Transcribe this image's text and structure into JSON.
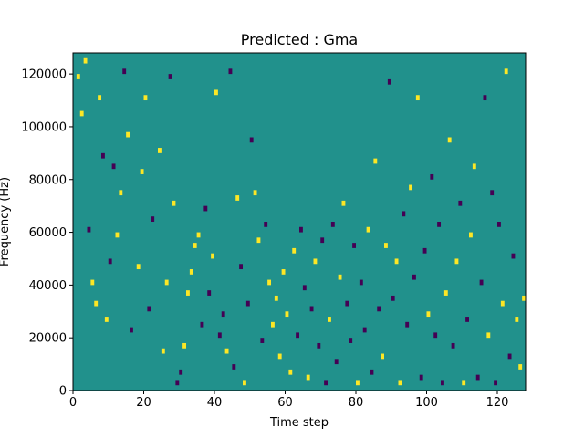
{
  "chart_data": {
    "type": "heatmap",
    "title": "Predicted : Gma",
    "xlabel": "Time step",
    "ylabel": "Frequency (Hz)",
    "xlim": [
      0,
      128
    ],
    "ylim": [
      0,
      128000
    ],
    "x_ticks": [
      0,
      20,
      40,
      60,
      80,
      100,
      120
    ],
    "y_ticks": [
      0,
      20000,
      40000,
      60000,
      80000,
      100000,
      120000
    ],
    "x_tick_labels": [
      "0",
      "20",
      "40",
      "60",
      "80",
      "100",
      "120"
    ],
    "y_tick_labels": [
      "0",
      "20000",
      "40000",
      "60000",
      "80000",
      "100000",
      "120000"
    ],
    "n_time_steps": 128,
    "n_frequency_bins": 64,
    "bin_height_hz": 2000,
    "value_range": [
      -1,
      1
    ],
    "colormap": {
      "-1": "#440154",
      "0": "#21918c",
      "1": "#fde725"
    },
    "background_value": 0,
    "grid": false,
    "cells": [
      {
        "t": 1,
        "f": 118000,
        "v": 1
      },
      {
        "t": 2,
        "f": 104000,
        "v": 1
      },
      {
        "t": 3,
        "f": 124000,
        "v": 1
      },
      {
        "t": 4,
        "f": 60000,
        "v": -1
      },
      {
        "t": 5,
        "f": 40000,
        "v": 1
      },
      {
        "t": 6,
        "f": 32000,
        "v": 1
      },
      {
        "t": 7,
        "f": 110000,
        "v": 1
      },
      {
        "t": 8,
        "f": 88000,
        "v": -1
      },
      {
        "t": 9,
        "f": 26000,
        "v": 1
      },
      {
        "t": 10,
        "f": 48000,
        "v": -1
      },
      {
        "t": 11,
        "f": 84000,
        "v": -1
      },
      {
        "t": 12,
        "f": 58000,
        "v": 1
      },
      {
        "t": 13,
        "f": 74000,
        "v": 1
      },
      {
        "t": 14,
        "f": 120000,
        "v": -1
      },
      {
        "t": 15,
        "f": 96000,
        "v": 1
      },
      {
        "t": 16,
        "f": 22000,
        "v": -1
      },
      {
        "t": 18,
        "f": 46000,
        "v": 1
      },
      {
        "t": 19,
        "f": 82000,
        "v": 1
      },
      {
        "t": 20,
        "f": 110000,
        "v": 1
      },
      {
        "t": 21,
        "f": 30000,
        "v": -1
      },
      {
        "t": 22,
        "f": 64000,
        "v": -1
      },
      {
        "t": 24,
        "f": 90000,
        "v": 1
      },
      {
        "t": 25,
        "f": 14000,
        "v": 1
      },
      {
        "t": 26,
        "f": 40000,
        "v": 1
      },
      {
        "t": 27,
        "f": 118000,
        "v": -1
      },
      {
        "t": 28,
        "f": 70000,
        "v": 1
      },
      {
        "t": 29,
        "f": 2000,
        "v": -1
      },
      {
        "t": 30,
        "f": 6000,
        "v": -1
      },
      {
        "t": 31,
        "f": 16000,
        "v": 1
      },
      {
        "t": 32,
        "f": 36000,
        "v": 1
      },
      {
        "t": 33,
        "f": 44000,
        "v": 1
      },
      {
        "t": 34,
        "f": 54000,
        "v": 1
      },
      {
        "t": 35,
        "f": 58000,
        "v": 1
      },
      {
        "t": 36,
        "f": 24000,
        "v": -1
      },
      {
        "t": 37,
        "f": 68000,
        "v": -1
      },
      {
        "t": 38,
        "f": 36000,
        "v": -1
      },
      {
        "t": 39,
        "f": 50000,
        "v": 1
      },
      {
        "t": 40,
        "f": 112000,
        "v": 1
      },
      {
        "t": 41,
        "f": 20000,
        "v": -1
      },
      {
        "t": 42,
        "f": 28000,
        "v": -1
      },
      {
        "t": 43,
        "f": 14000,
        "v": 1
      },
      {
        "t": 44,
        "f": 120000,
        "v": -1
      },
      {
        "t": 45,
        "f": 8000,
        "v": -1
      },
      {
        "t": 46,
        "f": 72000,
        "v": 1
      },
      {
        "t": 47,
        "f": 46000,
        "v": -1
      },
      {
        "t": 48,
        "f": 2000,
        "v": 1
      },
      {
        "t": 49,
        "f": 32000,
        "v": -1
      },
      {
        "t": 50,
        "f": 94000,
        "v": -1
      },
      {
        "t": 51,
        "f": 74000,
        "v": 1
      },
      {
        "t": 52,
        "f": 56000,
        "v": 1
      },
      {
        "t": 53,
        "f": 18000,
        "v": -1
      },
      {
        "t": 54,
        "f": 62000,
        "v": -1
      },
      {
        "t": 55,
        "f": 40000,
        "v": 1
      },
      {
        "t": 56,
        "f": 24000,
        "v": 1
      },
      {
        "t": 57,
        "f": 34000,
        "v": 1
      },
      {
        "t": 58,
        "f": 12000,
        "v": 1
      },
      {
        "t": 59,
        "f": 44000,
        "v": 1
      },
      {
        "t": 60,
        "f": 28000,
        "v": 1
      },
      {
        "t": 61,
        "f": 6000,
        "v": 1
      },
      {
        "t": 62,
        "f": 52000,
        "v": 1
      },
      {
        "t": 63,
        "f": 20000,
        "v": -1
      },
      {
        "t": 64,
        "f": 60000,
        "v": -1
      },
      {
        "t": 65,
        "f": 38000,
        "v": -1
      },
      {
        "t": 66,
        "f": 4000,
        "v": 1
      },
      {
        "t": 67,
        "f": 30000,
        "v": -1
      },
      {
        "t": 68,
        "f": 48000,
        "v": 1
      },
      {
        "t": 69,
        "f": 16000,
        "v": -1
      },
      {
        "t": 70,
        "f": 56000,
        "v": -1
      },
      {
        "t": 71,
        "f": 2000,
        "v": -1
      },
      {
        "t": 72,
        "f": 26000,
        "v": 1
      },
      {
        "t": 73,
        "f": 62000,
        "v": -1
      },
      {
        "t": 74,
        "f": 10000,
        "v": -1
      },
      {
        "t": 75,
        "f": 42000,
        "v": 1
      },
      {
        "t": 76,
        "f": 70000,
        "v": 1
      },
      {
        "t": 77,
        "f": 32000,
        "v": -1
      },
      {
        "t": 78,
        "f": 18000,
        "v": -1
      },
      {
        "t": 79,
        "f": 54000,
        "v": -1
      },
      {
        "t": 80,
        "f": 2000,
        "v": 1
      },
      {
        "t": 81,
        "f": 40000,
        "v": -1
      },
      {
        "t": 82,
        "f": 22000,
        "v": -1
      },
      {
        "t": 83,
        "f": 60000,
        "v": 1
      },
      {
        "t": 84,
        "f": 6000,
        "v": -1
      },
      {
        "t": 85,
        "f": 86000,
        "v": 1
      },
      {
        "t": 86,
        "f": 30000,
        "v": -1
      },
      {
        "t": 87,
        "f": 12000,
        "v": 1
      },
      {
        "t": 88,
        "f": 54000,
        "v": 1
      },
      {
        "t": 89,
        "f": 116000,
        "v": -1
      },
      {
        "t": 90,
        "f": 34000,
        "v": -1
      },
      {
        "t": 91,
        "f": 48000,
        "v": 1
      },
      {
        "t": 92,
        "f": 2000,
        "v": 1
      },
      {
        "t": 93,
        "f": 66000,
        "v": -1
      },
      {
        "t": 94,
        "f": 24000,
        "v": -1
      },
      {
        "t": 95,
        "f": 76000,
        "v": 1
      },
      {
        "t": 96,
        "f": 42000,
        "v": -1
      },
      {
        "t": 97,
        "f": 110000,
        "v": 1
      },
      {
        "t": 98,
        "f": 4000,
        "v": -1
      },
      {
        "t": 99,
        "f": 52000,
        "v": -1
      },
      {
        "t": 100,
        "f": 28000,
        "v": 1
      },
      {
        "t": 101,
        "f": 80000,
        "v": -1
      },
      {
        "t": 102,
        "f": 20000,
        "v": -1
      },
      {
        "t": 103,
        "f": 62000,
        "v": -1
      },
      {
        "t": 104,
        "f": 2000,
        "v": -1
      },
      {
        "t": 105,
        "f": 36000,
        "v": 1
      },
      {
        "t": 106,
        "f": 94000,
        "v": 1
      },
      {
        "t": 107,
        "f": 16000,
        "v": -1
      },
      {
        "t": 108,
        "f": 48000,
        "v": 1
      },
      {
        "t": 109,
        "f": 70000,
        "v": -1
      },
      {
        "t": 110,
        "f": 2000,
        "v": 1
      },
      {
        "t": 111,
        "f": 26000,
        "v": -1
      },
      {
        "t": 112,
        "f": 58000,
        "v": 1
      },
      {
        "t": 113,
        "f": 84000,
        "v": 1
      },
      {
        "t": 114,
        "f": 4000,
        "v": -1
      },
      {
        "t": 115,
        "f": 40000,
        "v": -1
      },
      {
        "t": 116,
        "f": 110000,
        "v": -1
      },
      {
        "t": 117,
        "f": 20000,
        "v": 1
      },
      {
        "t": 118,
        "f": 74000,
        "v": -1
      },
      {
        "t": 119,
        "f": 2000,
        "v": -1
      },
      {
        "t": 120,
        "f": 62000,
        "v": -1
      },
      {
        "t": 121,
        "f": 32000,
        "v": 1
      },
      {
        "t": 122,
        "f": 120000,
        "v": 1
      },
      {
        "t": 123,
        "f": 12000,
        "v": -1
      },
      {
        "t": 124,
        "f": 50000,
        "v": -1
      },
      {
        "t": 125,
        "f": 26000,
        "v": 1
      },
      {
        "t": 126,
        "f": 8000,
        "v": 1
      },
      {
        "t": 127,
        "f": 34000,
        "v": 1
      }
    ]
  }
}
